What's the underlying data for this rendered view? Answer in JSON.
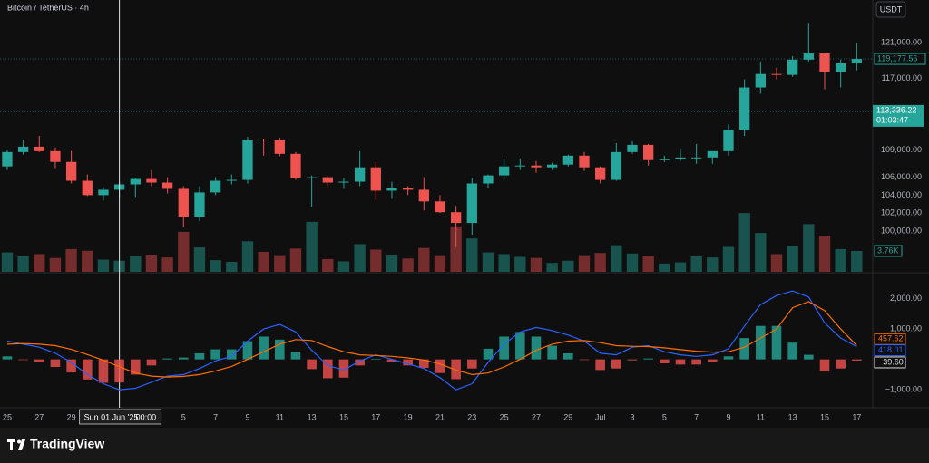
{
  "header": {
    "symbol": "Bitcoin / TetherUS · 4h",
    "currency": "USDT"
  },
  "chart_data": [
    {
      "type": "candlestick",
      "categories": [
        null,
        null,
        null,
        null,
        null,
        null,
        null,
        null,
        null,
        null,
        null,
        null,
        null,
        null,
        null,
        null,
        null,
        null,
        null,
        null,
        null,
        null,
        null,
        null,
        null,
        null,
        null,
        null,
        null,
        null,
        null,
        null,
        null,
        null,
        null,
        null,
        null,
        null,
        null,
        null,
        null,
        null,
        null,
        null,
        null,
        null,
        null,
        null,
        null,
        null,
        null,
        null,
        null,
        null
      ],
      "open": [
        107200,
        108800,
        109400,
        108900,
        107700,
        105600,
        104000,
        104600,
        105200,
        105800,
        105400,
        104700,
        101600,
        104300,
        105600,
        105700,
        110200,
        110100,
        108600,
        105900,
        106000,
        105400,
        105500,
        107100,
        104500,
        104800,
        104600,
        103300,
        102100,
        100900,
        105300,
        106200,
        107200,
        107300,
        107100,
        107400,
        108400,
        107100,
        105700,
        108800,
        109600,
        107900,
        108000,
        108200,
        108200,
        108900,
        111300,
        116000,
        117500,
        117400,
        119100,
        119800,
        117700,
        118700
      ],
      "high": [
        109000,
        110200,
        110600,
        109300,
        108900,
        106300,
        104900,
        105500,
        105900,
        106800,
        106000,
        105000,
        105000,
        106000,
        106300,
        110500,
        110300,
        110400,
        108800,
        106200,
        106200,
        105900,
        108900,
        107700,
        105500,
        105000,
        106000,
        104000,
        102800,
        105900,
        106300,
        108100,
        108100,
        107800,
        107600,
        108500,
        108800,
        107200,
        109800,
        110000,
        109700,
        108400,
        109200,
        109700,
        108900,
        111900,
        116900,
        118900,
        118200,
        119500,
        123200,
        119900,
        119100,
        120900
      ],
      "low": [
        106800,
        108500,
        108800,
        107000,
        105300,
        103900,
        103400,
        103800,
        103800,
        105000,
        104200,
        100400,
        101100,
        104000,
        105200,
        105300,
        108400,
        108300,
        105700,
        102700,
        104900,
        104700,
        105000,
        103500,
        103600,
        104000,
        102300,
        102000,
        98200,
        99600,
        104800,
        105900,
        106800,
        106500,
        106800,
        107200,
        106700,
        105300,
        105600,
        108600,
        107300,
        107700,
        107800,
        107500,
        107500,
        108400,
        110600,
        115300,
        116900,
        117200,
        118900,
        115800,
        116000,
        117900
      ],
      "close": [
        108800,
        109400,
        108900,
        107700,
        105600,
        104000,
        104600,
        105200,
        105800,
        105400,
        104700,
        101600,
        104300,
        105600,
        105700,
        110200,
        110100,
        108600,
        105900,
        106000,
        105400,
        105500,
        107100,
        104500,
        104800,
        104600,
        103300,
        102100,
        100900,
        105300,
        106200,
        107200,
        107300,
        107100,
        107400,
        108400,
        107100,
        105700,
        108800,
        109600,
        107900,
        108000,
        108200,
        108200,
        108900,
        111300,
        116000,
        117500,
        117400,
        119100,
        119800,
        117700,
        118700,
        119177.56
      ],
      "up_color": "#26a69a",
      "down_color": "#ef5350",
      "ylim": [
        95457,
        125745
      ],
      "yticks": [
        {
          "value": 121000,
          "label": "121,000.00"
        },
        {
          "value": 117000,
          "label": "117,000.00"
        },
        {
          "value": 109000,
          "label": "109,000.00"
        },
        {
          "value": 106000,
          "label": "106,000.00"
        },
        {
          "value": 104000,
          "label": "104,000.00"
        },
        {
          "value": 102000,
          "label": "102,000.00"
        },
        {
          "value": 100000,
          "label": "100,000.00"
        }
      ],
      "xlim": [
        -0.45,
        54
      ],
      "xticks": [
        {
          "value": 0,
          "label": "25"
        },
        {
          "value": 2,
          "label": "27"
        },
        {
          "value": 4,
          "label": "29"
        },
        {
          "value": 11,
          "label": "5"
        },
        {
          "value": 13,
          "label": "7"
        },
        {
          "value": 15,
          "label": "9"
        },
        {
          "value": 17,
          "label": "11"
        },
        {
          "value": 19,
          "label": "13"
        },
        {
          "value": 21,
          "label": "15"
        },
        {
          "value": 23,
          "label": "17"
        },
        {
          "value": 25,
          "label": "19"
        },
        {
          "value": 27,
          "label": "21"
        },
        {
          "value": 29,
          "label": "23"
        },
        {
          "value": 31,
          "label": "25"
        },
        {
          "value": 33,
          "label": "27"
        },
        {
          "value": 35,
          "label": "29"
        },
        {
          "value": 37,
          "label": "Jul"
        },
        {
          "value": 39,
          "label": "3"
        },
        {
          "value": 41,
          "label": "5"
        },
        {
          "value": 43,
          "label": "7"
        },
        {
          "value": 45,
          "label": "9"
        },
        {
          "value": 47,
          "label": "11"
        },
        {
          "value": 49,
          "label": "13"
        },
        {
          "value": 51,
          "label": "15"
        },
        {
          "value": 53,
          "label": "17"
        }
      ],
      "crosshair": {
        "value": 7,
        "date": "Sun 01 Jun '25",
        "time": "00:00"
      },
      "price_labels": [
        {
          "value": 119177.56,
          "label": "119,177.56"
        },
        {
          "value": 113336.22,
          "label": "113,336.22",
          "countdown": "01:03:47"
        }
      ],
      "volume": {
        "values": [
          3.5,
          2.8,
          3.2,
          2.5,
          4.1,
          3.8,
          2.2,
          2.0,
          2.9,
          3.1,
          2.6,
          7.2,
          4.4,
          2.1,
          1.8,
          5.5,
          3.6,
          3.0,
          4.2,
          9.0,
          2.3,
          1.9,
          5.0,
          4.0,
          3.1,
          2.4,
          4.3,
          3.0,
          8.2,
          6.0,
          3.5,
          3.2,
          2.7,
          2.5,
          1.6,
          2.0,
          3.0,
          3.4,
          4.8,
          3.3,
          2.9,
          1.5,
          1.7,
          2.8,
          2.6,
          4.5,
          10.6,
          7.0,
          3.2,
          4.6,
          8.6,
          6.5,
          4.1,
          3.76
        ],
        "value_labels": [
          null,
          null,
          null,
          null,
          null,
          null,
          null,
          null,
          null,
          null,
          null,
          null,
          null,
          null,
          null,
          null,
          null,
          null,
          null,
          null,
          null,
          null,
          null,
          null,
          null,
          null,
          null,
          null,
          null,
          null,
          null,
          null,
          null,
          null,
          null,
          null,
          null,
          null,
          null,
          null,
          null,
          null,
          null,
          null,
          null,
          null,
          null,
          null,
          null,
          null,
          null,
          null,
          null,
          "3.76K"
        ],
        "ylim": [
          0,
          49
        ]
      }
    },
    {
      "type": "macd",
      "ylim": [
        -1590,
        2820
      ],
      "yticks": [
        {
          "value": 2000,
          "label": "2,000.00"
        },
        {
          "value": 1000,
          "label": "1,000.00"
        },
        {
          "value": -1000,
          "label": "−1,000.00"
        }
      ],
      "series": [
        {
          "color": "#2962ff",
          "values": [
            600,
            500,
            400,
            200,
            -100,
            -500,
            -800,
            -1000,
            -950,
            -750,
            -550,
            -500,
            -300,
            -50,
            100,
            600,
            1000,
            1150,
            900,
            300,
            -200,
            -350,
            -50,
            150,
            0,
            -150,
            -300,
            -600,
            -1000,
            -800,
            -100,
            500,
            900,
            1050,
            950,
            800,
            600,
            200,
            150,
            400,
            450,
            250,
            150,
            100,
            150,
            350,
            1100,
            1800,
            2100,
            2250,
            2050,
            1200,
            700,
            418.01
          ],
          "value_labels": [
            null,
            null,
            null,
            null,
            null,
            null,
            null,
            null,
            null,
            null,
            null,
            null,
            null,
            null,
            null,
            null,
            null,
            null,
            null,
            null,
            null,
            null,
            null,
            null,
            null,
            null,
            null,
            null,
            null,
            null,
            null,
            null,
            null,
            null,
            null,
            null,
            null,
            null,
            null,
            null,
            null,
            null,
            null,
            null,
            null,
            null,
            null,
            null,
            null,
            null,
            null,
            null,
            null,
            "418.01"
          ]
        },
        {
          "color": "#ff6d00",
          "values": [
            500,
            520,
            500,
            450,
            330,
            160,
            -30,
            -240,
            -450,
            -550,
            -580,
            -560,
            -500,
            -380,
            -230,
            0,
            250,
            500,
            650,
            620,
            420,
            250,
            150,
            130,
            100,
            50,
            -20,
            -150,
            -350,
            -500,
            -450,
            -250,
            0,
            300,
            500,
            600,
            620,
            550,
            450,
            430,
            420,
            380,
            320,
            270,
            240,
            250,
            400,
            700,
            1000,
            1700,
            1900,
            1600,
            1000,
            457.62
          ],
          "value_labels": [
            null,
            null,
            null,
            null,
            null,
            null,
            null,
            null,
            null,
            null,
            null,
            null,
            null,
            null,
            null,
            null,
            null,
            null,
            null,
            null,
            null,
            null,
            null,
            null,
            null,
            null,
            null,
            null,
            null,
            null,
            null,
            null,
            null,
            null,
            null,
            null,
            null,
            null,
            null,
            null,
            null,
            null,
            null,
            null,
            null,
            null,
            null,
            null,
            null,
            null,
            null,
            null,
            null,
            "457.62"
          ]
        }
      ],
      "histogram": {
        "up_color": "#26a69a",
        "down_color": "#ef5350",
        "values": [
          100,
          -20,
          -100,
          -250,
          -430,
          -660,
          -770,
          -760,
          -500,
          -200,
          30,
          60,
          200,
          330,
          330,
          600,
          750,
          650,
          250,
          -320,
          -620,
          -600,
          -200,
          20,
          -100,
          -200,
          -280,
          -450,
          -650,
          -300,
          350,
          750,
          900,
          750,
          450,
          200,
          -20,
          -350,
          -300,
          -30,
          30,
          -130,
          -170,
          -170,
          -90,
          100,
          700,
          1100,
          1100,
          550,
          150,
          -400,
          -300,
          -39.6
        ],
        "value_labels": [
          null,
          null,
          null,
          null,
          null,
          null,
          null,
          null,
          null,
          null,
          null,
          null,
          null,
          null,
          null,
          null,
          null,
          null,
          null,
          null,
          null,
          null,
          null,
          null,
          null,
          null,
          null,
          null,
          null,
          null,
          null,
          null,
          null,
          null,
          null,
          null,
          null,
          null,
          null,
          null,
          null,
          null,
          null,
          null,
          null,
          null,
          null,
          null,
          null,
          null,
          null,
          null,
          null,
          "−39.60"
        ]
      }
    }
  ],
  "footer": {
    "brand": "TradingView"
  }
}
